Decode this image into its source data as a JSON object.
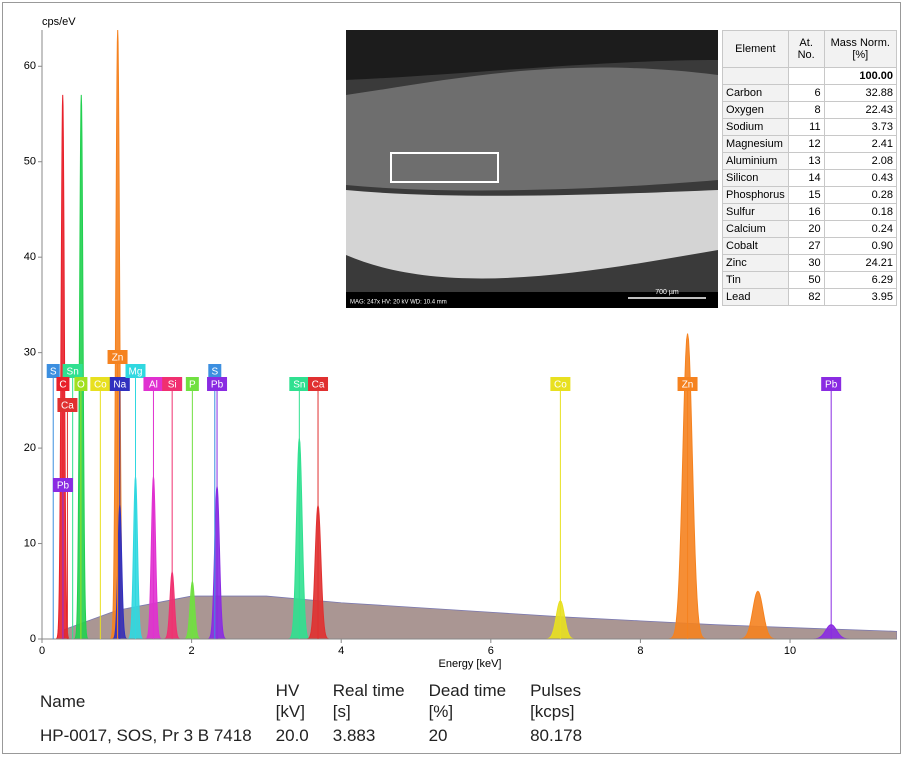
{
  "chart_data": {
    "type": "spectrum",
    "y_axis_label": "cps/eV",
    "x_axis_label": "Energy [keV]",
    "xlim": [
      0,
      11.43
    ],
    "ylim": [
      0,
      63.8
    ],
    "xticks": [
      0,
      2,
      4,
      6,
      8,
      10
    ],
    "yticks": [
      0,
      10,
      20,
      30,
      40,
      50,
      60
    ],
    "background": {
      "color": "#9b8480",
      "x": [
        0.3,
        1,
        2,
        3,
        4,
        5,
        6,
        7,
        8,
        9,
        10,
        11.43
      ],
      "values": [
        1,
        3,
        4.5,
        4.5,
        3.8,
        3.3,
        2.8,
        2.3,
        1.9,
        1.5,
        1.2,
        0.8
      ]
    },
    "peaks": [
      {
        "energy": 0.277,
        "height": 57,
        "color": "#e8202a"
      },
      {
        "energy": 0.525,
        "height": 57,
        "color": "#22d050"
      },
      {
        "energy": 1.012,
        "height": 63.8,
        "color": "#f5821f"
      },
      {
        "energy": 1.04,
        "height": 14,
        "color": "#3030c0"
      },
      {
        "energy": 1.25,
        "height": 17,
        "color": "#30d8e0"
      },
      {
        "energy": 1.49,
        "height": 17,
        "color": "#e030d0"
      },
      {
        "energy": 1.74,
        "height": 7,
        "color": "#f03070"
      },
      {
        "energy": 2.01,
        "height": 6,
        "color": "#70e040"
      },
      {
        "energy": 2.34,
        "height": 16,
        "color": "#8a2be2"
      },
      {
        "energy": 3.44,
        "height": 21,
        "color": "#30e090"
      },
      {
        "energy": 3.69,
        "height": 14,
        "color": "#e03030"
      },
      {
        "energy": 6.93,
        "height": 4,
        "color": "#e8e020"
      },
      {
        "energy": 8.63,
        "height": 32,
        "color": "#f5821f"
      },
      {
        "energy": 9.57,
        "height": 5,
        "color": "#f5821f"
      },
      {
        "energy": 10.55,
        "height": 1.5,
        "color": "#8a2be2"
      }
    ],
    "markers": [
      {
        "label": "S",
        "energy": 0.15,
        "color": "#3c8fe0"
      },
      {
        "label": "Sn",
        "energy": 0.41,
        "color": "#30e090"
      },
      {
        "label": "C",
        "energy": 0.28,
        "color": "#e8202a"
      },
      {
        "label": "O",
        "energy": 0.52,
        "color": "#a0e020"
      },
      {
        "label": "Co",
        "energy": 0.78,
        "color": "#e8e020"
      },
      {
        "label": "Zn",
        "energy": 1.01,
        "color": "#f5821f"
      },
      {
        "label": "Na",
        "energy": 1.04,
        "color": "#3030c0"
      },
      {
        "label": "Mg",
        "energy": 1.25,
        "color": "#30d8e0"
      },
      {
        "label": "Al",
        "energy": 1.49,
        "color": "#e030d0"
      },
      {
        "label": "Si",
        "energy": 1.74,
        "color": "#f03070"
      },
      {
        "label": "P",
        "energy": 2.01,
        "color": "#70e040"
      },
      {
        "label": "S",
        "energy": 2.31,
        "color": "#3c8fe0"
      },
      {
        "label": "Pb",
        "energy": 2.34,
        "color": "#8a2be2"
      },
      {
        "label": "Sn",
        "energy": 3.44,
        "color": "#30e090"
      },
      {
        "label": "Ca",
        "energy": 3.69,
        "color": "#e03030"
      },
      {
        "label": "Co",
        "energy": 6.93,
        "color": "#e8e020"
      },
      {
        "label": "Zn",
        "energy": 8.63,
        "color": "#f5821f"
      },
      {
        "label": "Pb",
        "energy": 10.55,
        "color": "#8a2be2"
      },
      {
        "label": "Ca",
        "energy": 0.34,
        "color": "#e03030"
      },
      {
        "label": "Pb",
        "energy": 0.28,
        "color": "#8a2be2"
      }
    ]
  },
  "micrograph": {
    "info": "MAG: 247x   HV: 20 kV   WD: 10.4 mm",
    "scale_bar": "700 µm"
  },
  "element_table": {
    "columns": [
      "Element",
      "At. No.",
      "Mass Norm. [%]"
    ],
    "total": "100.00",
    "rows": [
      [
        "Carbon",
        "6",
        "32.88"
      ],
      [
        "Oxygen",
        "8",
        "22.43"
      ],
      [
        "Sodium",
        "11",
        "3.73"
      ],
      [
        "Magnesium",
        "12",
        "2.41"
      ],
      [
        "Aluminium",
        "13",
        "2.08"
      ],
      [
        "Silicon",
        "14",
        "0.43"
      ],
      [
        "Phosphorus",
        "15",
        "0.28"
      ],
      [
        "Sulfur",
        "16",
        "0.18"
      ],
      [
        "Calcium",
        "20",
        "0.24"
      ],
      [
        "Cobalt",
        "27",
        "0.90"
      ],
      [
        "Zinc",
        "30",
        "24.21"
      ],
      [
        "Tin",
        "50",
        "6.29"
      ],
      [
        "Lead",
        "82",
        "3.95"
      ]
    ]
  },
  "summary": {
    "columns": [
      "Name",
      "HV\n[kV]",
      "Real time\n[s]",
      "Dead time\n[%]",
      "Pulses\n[kcps]"
    ],
    "row": [
      "HP-0017, SOS, Pr 3 B 7418",
      "20.0",
      "3.883",
      "20",
      "80.178"
    ]
  }
}
